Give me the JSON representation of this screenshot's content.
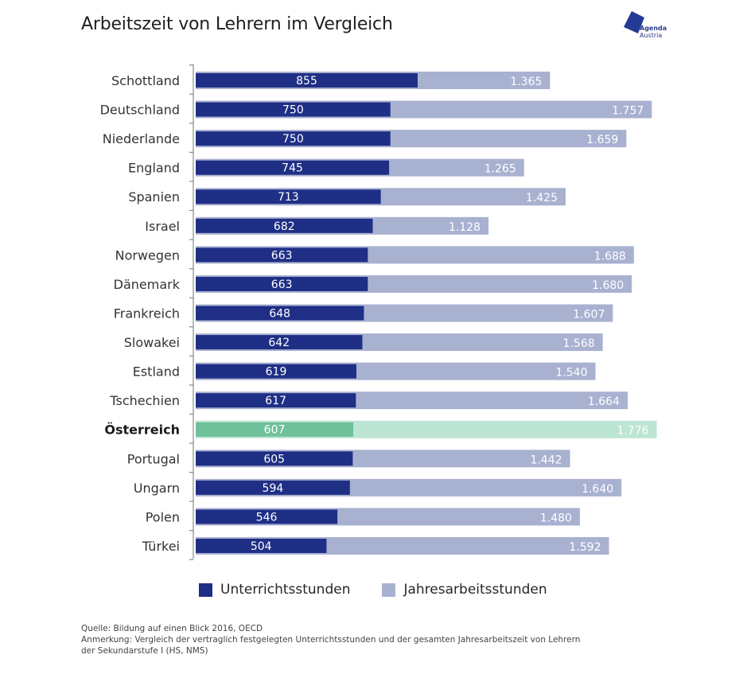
{
  "header": {
    "title": "Arbeitszeit von Lehrern im Vergleich",
    "logo_line1": "Agenda",
    "logo_line2": "Austria"
  },
  "colors": {
    "series1": "#1f2f86",
    "series2": "#a9b1d1",
    "highlight1": "#6fc19b",
    "highlight2": "#bde5d3",
    "axis": "#8a8a8a",
    "logo": "#243b95"
  },
  "chart_data": {
    "type": "bar",
    "orientation": "horizontal",
    "layout": "overlapping",
    "title": "Arbeitszeit von Lehrern im Vergleich",
    "xlabel": "",
    "ylabel": "",
    "grid": false,
    "legend_position": "bottom",
    "categories": [
      "Schottland",
      "Deutschland",
      "Niederlande",
      "England",
      "Spanien",
      "Israel",
      "Norwegen",
      "Dänemark",
      "Frankreich",
      "Slowakei",
      "Estland",
      "Tschechien",
      "Österreich",
      "Portugal",
      "Ungarn",
      "Polen",
      "Türkei"
    ],
    "highlight_category": "Österreich",
    "series": [
      {
        "name": "Unterrichtsstunden",
        "values": [
          855,
          750,
          750,
          745,
          713,
          682,
          663,
          663,
          648,
          642,
          619,
          617,
          607,
          605,
          594,
          546,
          504
        ],
        "labels": [
          "855",
          "750",
          "750",
          "745",
          "713",
          "682",
          "663",
          "663",
          "648",
          "642",
          "619",
          "617",
          "607",
          "605",
          "594",
          "546",
          "504"
        ]
      },
      {
        "name": "Jahresarbeitsstunden",
        "values": [
          1365,
          1757,
          1659,
          1265,
          1425,
          1128,
          1688,
          1680,
          1607,
          1568,
          1540,
          1664,
          1776,
          1442,
          1640,
          1480,
          1592
        ],
        "labels": [
          "1.365",
          "1.757",
          "1.659",
          "1.265",
          "1.425",
          "1.128",
          "1.688",
          "1.680",
          "1.607",
          "1.568",
          "1.540",
          "1.664",
          "1.776",
          "1.442",
          "1.640",
          "1.480",
          "1.592"
        ]
      }
    ],
    "xlim": [
      0,
      1776
    ]
  },
  "legend": {
    "items": [
      {
        "label": "Unterrichtsstunden"
      },
      {
        "label": "Jahresarbeitsstunden"
      }
    ]
  },
  "footer": {
    "source": "Quelle: Bildung auf einen Blick 2016, OECD",
    "note_line1": "Anmerkung: Vergleich der vertraglich festgelegten Unterrichtsstunden und der gesamten Jahresarbeitszeit von Lehrern",
    "note_line2": "der Sekundarstufe I (HS, NMS)"
  }
}
